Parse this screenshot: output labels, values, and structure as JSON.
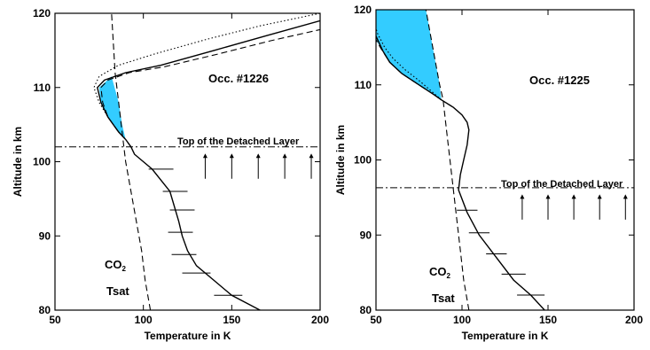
{
  "chart_data": [
    {
      "type": "line",
      "xlabel": "Temperature in K",
      "ylabel": "Altitude in km",
      "xlim": [
        50,
        200
      ],
      "ylim": [
        80,
        120
      ],
      "xticks": [
        "50",
        "100",
        "150",
        "200"
      ],
      "yticks": [
        "80",
        "90",
        "100",
        "110",
        "120"
      ],
      "occ_label": "Occ. #1226",
      "layer_label": "Top of the Detached Layer",
      "layer_altitude": 102,
      "arrow_temperatures": [
        135,
        150,
        165,
        180,
        195
      ],
      "co2_label": "CO",
      "co2_subscript": "2",
      "tsat_label": "Tsat",
      "fill_color": "#33ccff",
      "series": [
        {
          "style": "solid",
          "x": [
            166,
            150,
            140,
            130,
            125,
            122,
            120,
            115,
            105,
            95,
            93,
            90,
            86,
            80,
            76,
            74,
            78,
            90,
            110,
            140,
            170,
            200
          ],
          "y": [
            80,
            82,
            84,
            86,
            88,
            90,
            92,
            96,
            99,
            101,
            102,
            103,
            104,
            106,
            108,
            110,
            111,
            112,
            113,
            115,
            117,
            119
          ]
        },
        {
          "style": "dashed",
          "x": [
            93,
            90,
            86,
            80,
            77,
            76,
            80,
            92,
            112,
            142,
            172,
            200
          ],
          "y": [
            102,
            103,
            104,
            106,
            108,
            110,
            111,
            112,
            112.8,
            114.5,
            116.3,
            117.8
          ]
        },
        {
          "style": "dotted",
          "x": [
            93,
            90,
            86,
            80,
            75,
            72,
            75,
            86,
            106,
            136,
            166,
            200
          ],
          "y": [
            102,
            103,
            104,
            106,
            108,
            110,
            111.5,
            113,
            114.5,
            116.5,
            118.3,
            120
          ]
        },
        {
          "name": "Tsat",
          "style": "dashed",
          "x": [
            104,
            101,
            99,
            96,
            93,
            90,
            88,
            86,
            84,
            82
          ],
          "y": [
            80,
            84,
            88,
            92,
            96,
            100,
            104,
            108,
            112,
            120
          ]
        }
      ],
      "error_bars": [
        {
          "y": 99,
          "x": 110,
          "xerr": 7
        },
        {
          "y": 96,
          "x": 118,
          "xerr": 7
        },
        {
          "y": 93.5,
          "x": 122,
          "xerr": 7
        },
        {
          "y": 90.5,
          "x": 121,
          "xerr": 7
        },
        {
          "y": 87.5,
          "x": 123,
          "xerr": 7
        },
        {
          "y": 85,
          "x": 130,
          "xerr": 8
        },
        {
          "y": 82,
          "x": 148,
          "xerr": 8
        }
      ],
      "shaded_region": {
        "x": [
          93,
          90,
          86,
          80,
          76,
          75,
          82,
          86,
          88,
          90,
          93
        ],
        "y": [
          102,
          103,
          104,
          106,
          108,
          110,
          111.5,
          108,
          105,
          103,
          102
        ]
      }
    },
    {
      "type": "line",
      "xlabel": "Temperature in K",
      "ylabel": "Altitude in km",
      "xlim": [
        50,
        200
      ],
      "ylim": [
        80,
        120
      ],
      "xticks": [
        "50",
        "100",
        "150",
        "200"
      ],
      "yticks": [
        "80",
        "90",
        "100",
        "110",
        "120"
      ],
      "occ_label": "Occ. #1225",
      "layer_label": "Top of the Detached Layer",
      "layer_altitude": 96.3,
      "arrow_temperatures": [
        135,
        150,
        165,
        180,
        195
      ],
      "co2_label": "CO",
      "co2_subscript": "2",
      "tsat_label": "Tsat",
      "fill_color": "#33ccff",
      "series": [
        {
          "style": "solid",
          "x": [
            148,
            140,
            130,
            120,
            110,
            103,
            98,
            99,
            101,
            103,
            104,
            103,
            100,
            95,
            88,
            83,
            75,
            65,
            58,
            54,
            51,
            50
          ],
          "y": [
            80,
            82,
            84,
            87,
            90,
            93,
            96,
            98,
            100,
            102,
            104,
            105,
            106,
            107,
            108,
            108.8,
            110,
            111.5,
            113,
            114.5,
            116,
            116.5
          ]
        },
        {
          "style": "dashed",
          "x": [
            88,
            83,
            75,
            65,
            58,
            53,
            50
          ],
          "y": [
            108,
            108.8,
            110,
            111.5,
            113,
            114.8,
            116
          ]
        },
        {
          "style": "dotted",
          "x": [
            88,
            83,
            76,
            67,
            60,
            55,
            51,
            50
          ],
          "y": [
            108,
            109,
            110.4,
            112,
            113.5,
            115,
            116.8,
            117.5
          ]
        },
        {
          "name": "Tsat",
          "style": "dashed",
          "x": [
            104,
            101,
            99,
            97,
            95,
            93,
            91,
            89,
            87,
            83,
            79
          ],
          "y": [
            80,
            84,
            88,
            92,
            96,
            100,
            104,
            108,
            110,
            115,
            120
          ]
        }
      ],
      "error_bars": [
        {
          "y": 82,
          "x": 140,
          "xerr": 8
        },
        {
          "y": 84.8,
          "x": 130,
          "xerr": 7
        },
        {
          "y": 87.5,
          "x": 120,
          "xerr": 6
        },
        {
          "y": 90.3,
          "x": 110,
          "xerr": 6
        },
        {
          "y": 93.3,
          "x": 103,
          "xerr": 6
        }
      ],
      "shaded_region": {
        "x": [
          88,
          83,
          75,
          65,
          58,
          53,
          50,
          50,
          79,
          83,
          87,
          88
        ],
        "y": [
          108,
          108.8,
          110,
          111.5,
          113,
          114.8,
          116,
          120,
          120,
          115,
          110,
          108
        ]
      }
    }
  ]
}
